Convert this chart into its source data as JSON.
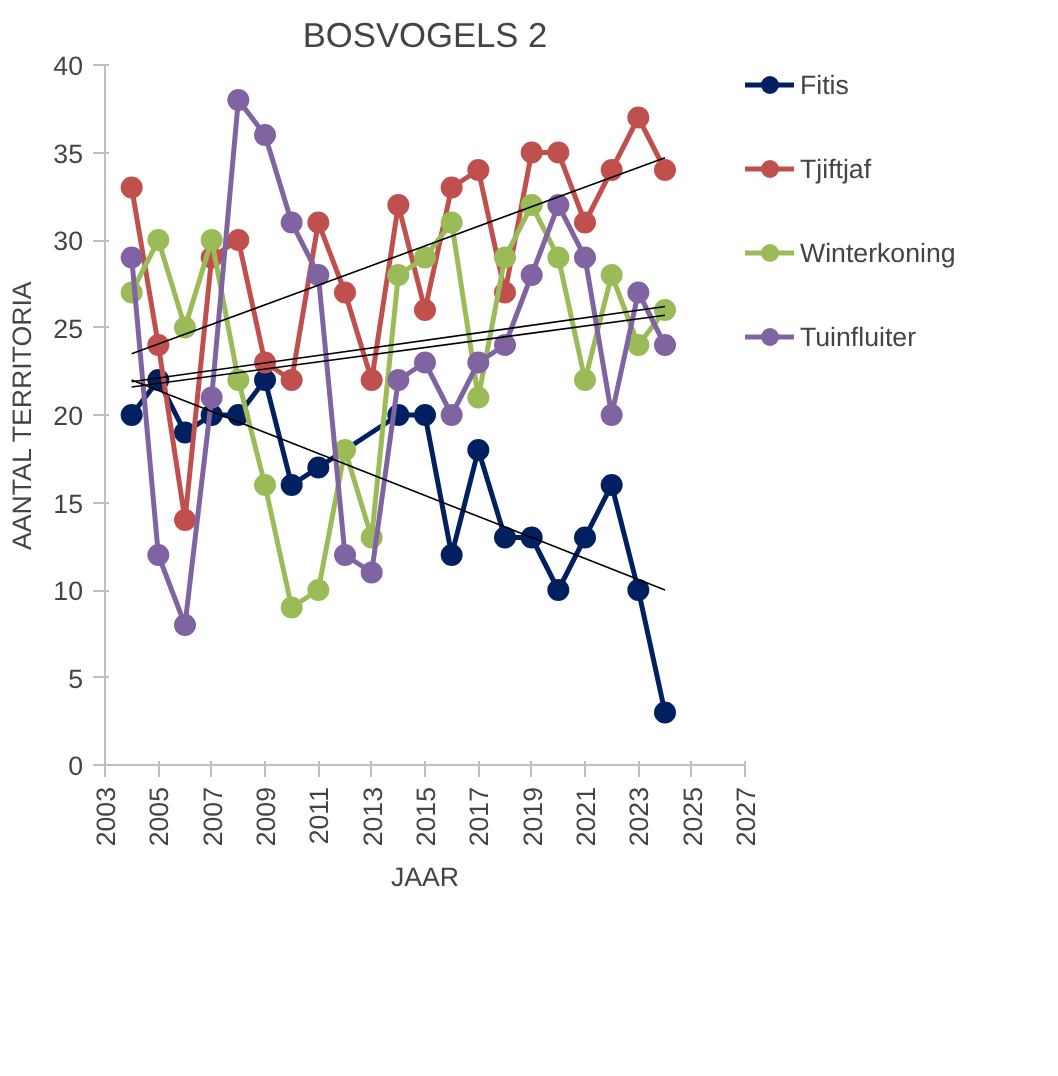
{
  "chart_data": {
    "type": "line",
    "title": "BOSVOGELS 2",
    "xlabel": "JAAR",
    "ylabel": "AANTAL TERRITORIA",
    "x": [
      2004,
      2005,
      2006,
      2007,
      2008,
      2009,
      2010,
      2011,
      2012,
      2013,
      2014,
      2015,
      2016,
      2017,
      2018,
      2019,
      2020,
      2021,
      2022,
      2023,
      2024
    ],
    "series": [
      {
        "name": "Fitis",
        "color": "#002060",
        "x": [
          2004,
          2005,
          2006,
          2007,
          2008,
          2009,
          2010,
          2011,
          2014,
          2015,
          2016,
          2017,
          2018,
          2019,
          2020,
          2021,
          2022,
          2023,
          2024
        ],
        "values": [
          20,
          22,
          19,
          20,
          20,
          22,
          16,
          17,
          20,
          20,
          12,
          18,
          13,
          13,
          10,
          13,
          16,
          10,
          3
        ]
      },
      {
        "name": "Tjiftjaf",
        "color": "#c0504d",
        "values": [
          33,
          24,
          14,
          29,
          30,
          23,
          22,
          31,
          27,
          22,
          32,
          26,
          33,
          34,
          27,
          35,
          35,
          31,
          34,
          37,
          34
        ]
      },
      {
        "name": "Winterkoning",
        "color": "#9bbb59",
        "values": [
          27,
          30,
          25,
          30,
          22,
          16,
          9,
          10,
          18,
          13,
          28,
          29,
          31,
          21,
          29,
          32,
          29,
          22,
          28,
          24,
          26
        ]
      },
      {
        "name": "Tuinfluiter",
        "color": "#8064a2",
        "values": [
          29,
          12,
          8,
          21,
          38,
          36,
          31,
          28,
          12,
          11,
          22,
          23,
          20,
          23,
          24,
          28,
          32,
          29,
          20,
          27,
          24
        ]
      },
      {
        "color": "#000000",
        "x": [
          2004,
          2024
        ],
        "values": [
          22,
          10
        ],
        "marker": "none"
      },
      {
        "color": "#000000",
        "x": [
          2004,
          2024
        ],
        "values": [
          23.5,
          34.7
        ],
        "marker": "none"
      },
      {
        "color": "#000000",
        "x": [
          2004,
          2024
        ],
        "values": [
          21.6,
          25.7
        ],
        "marker": "none"
      },
      {
        "color": "#000000",
        "x": [
          2004,
          2024
        ],
        "values": [
          21.9,
          26.2
        ],
        "marker": "none"
      }
    ],
    "xlim": [
      2003,
      2027
    ],
    "xticks": [
      2003,
      2005,
      2007,
      2009,
      2011,
      2013,
      2015,
      2017,
      2019,
      2021,
      2023,
      2025,
      2027
    ],
    "ylim": [
      0,
      40
    ],
    "yticks": [
      0,
      5,
      10,
      15,
      20,
      25,
      30,
      35,
      40
    ],
    "marker": "circle",
    "line_style": "solid",
    "grid": false,
    "legend": "right"
  }
}
